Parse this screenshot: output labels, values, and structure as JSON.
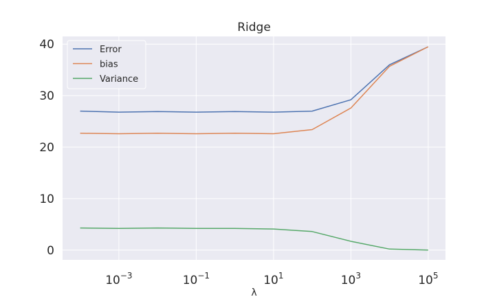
{
  "chart_data": {
    "type": "line",
    "title": "Ridge",
    "xlabel": "λ",
    "ylabel": "",
    "xscale": "log",
    "x": [
      0.0001,
      0.001,
      0.01,
      0.1,
      1,
      10,
      100,
      1000,
      10000,
      100000
    ],
    "xlim": [
      3.5e-05,
      280000
    ],
    "ylim": [
      -1.9,
      41.5
    ],
    "xticks": [
      {
        "value": 0.001,
        "base": "10",
        "exp": "−3"
      },
      {
        "value": 0.1,
        "base": "10",
        "exp": "−1"
      },
      {
        "value": 10,
        "base": "10",
        "exp": "1"
      },
      {
        "value": 1000,
        "base": "10",
        "exp": "3"
      },
      {
        "value": 100000,
        "base": "10",
        "exp": "5"
      }
    ],
    "yticks": [
      0,
      10,
      20,
      30,
      40
    ],
    "ytick_labels": [
      "0",
      "10",
      "20",
      "30",
      "40"
    ],
    "grid": true,
    "legend_position": "top-left",
    "series": [
      {
        "name": "Error",
        "color": "#4c72b0",
        "values": [
          27.0,
          26.8,
          26.9,
          26.8,
          26.9,
          26.8,
          27.0,
          29.2,
          36.0,
          39.5
        ]
      },
      {
        "name": "bias",
        "color": "#dd8452",
        "values": [
          22.7,
          22.6,
          22.7,
          22.6,
          22.7,
          22.6,
          23.4,
          27.6,
          35.7,
          39.5
        ]
      },
      {
        "name": "Variance",
        "color": "#55a868",
        "values": [
          4.3,
          4.2,
          4.3,
          4.2,
          4.2,
          4.1,
          3.6,
          1.7,
          0.2,
          0.0
        ]
      }
    ]
  }
}
